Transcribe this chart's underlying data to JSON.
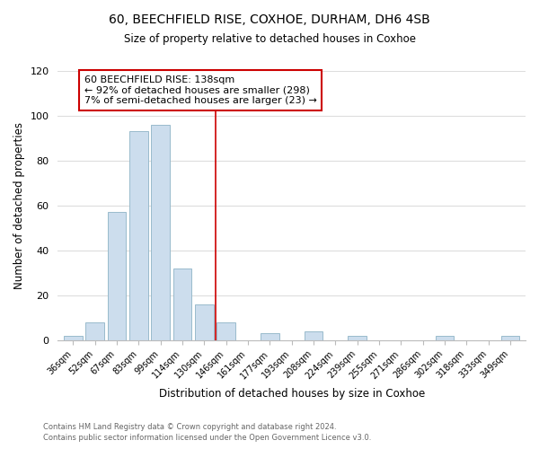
{
  "title": "60, BEECHFIELD RISE, COXHOE, DURHAM, DH6 4SB",
  "subtitle": "Size of property relative to detached houses in Coxhoe",
  "xlabel": "Distribution of detached houses by size in Coxhoe",
  "ylabel": "Number of detached properties",
  "bar_labels": [
    "36sqm",
    "52sqm",
    "67sqm",
    "83sqm",
    "99sqm",
    "114sqm",
    "130sqm",
    "146sqm",
    "161sqm",
    "177sqm",
    "193sqm",
    "208sqm",
    "224sqm",
    "239sqm",
    "255sqm",
    "271sqm",
    "286sqm",
    "302sqm",
    "318sqm",
    "333sqm",
    "349sqm"
  ],
  "bar_values": [
    2,
    8,
    57,
    93,
    96,
    32,
    16,
    8,
    0,
    3,
    0,
    4,
    0,
    2,
    0,
    0,
    0,
    2,
    0,
    0,
    2
  ],
  "bar_color": "#ccdded",
  "bar_edge_color": "#99bbcc",
  "vline_color": "#cc0000",
  "annotation_title": "60 BEECHFIELD RISE: 138sqm",
  "annotation_line1": "← 92% of detached houses are smaller (298)",
  "annotation_line2": "7% of semi-detached houses are larger (23) →",
  "annotation_box_color": "#ffffff",
  "annotation_box_edge": "#cc0000",
  "ylim": [
    0,
    120
  ],
  "bg_color": "#ffffff",
  "grid_color": "#dddddd",
  "footer1": "Contains HM Land Registry data © Crown copyright and database right 2024.",
  "footer2": "Contains public sector information licensed under the Open Government Licence v3.0."
}
